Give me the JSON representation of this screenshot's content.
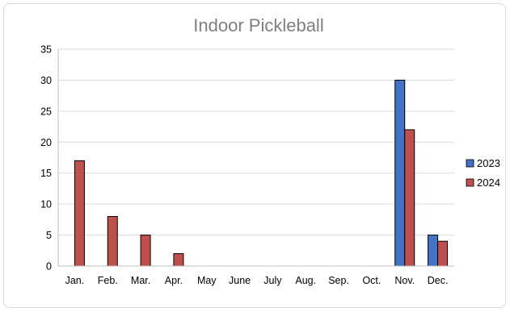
{
  "chart_data": {
    "type": "bar",
    "title": "Indoor Pickleball",
    "xlabel": "",
    "ylabel": "",
    "categories": [
      "Jan.",
      "Feb.",
      "Mar.",
      "Apr.",
      "May",
      "June",
      "July",
      "Aug.",
      "Sep.",
      "Oct.",
      "Nov.",
      "Dec."
    ],
    "series": [
      {
        "name": "2023",
        "color": "#4472c4",
        "values": [
          0,
          0,
          0,
          0,
          0,
          0,
          0,
          0,
          0,
          0,
          30,
          5
        ]
      },
      {
        "name": "2024",
        "color": "#c0504d",
        "values": [
          17,
          8,
          5,
          2,
          0,
          0,
          0,
          0,
          0,
          0,
          22,
          4
        ]
      }
    ],
    "ylim": [
      0,
      35
    ],
    "yticks": [
      0,
      5,
      10,
      15,
      20,
      25,
      30,
      35
    ],
    "grid": true,
    "legend_position": "right"
  }
}
